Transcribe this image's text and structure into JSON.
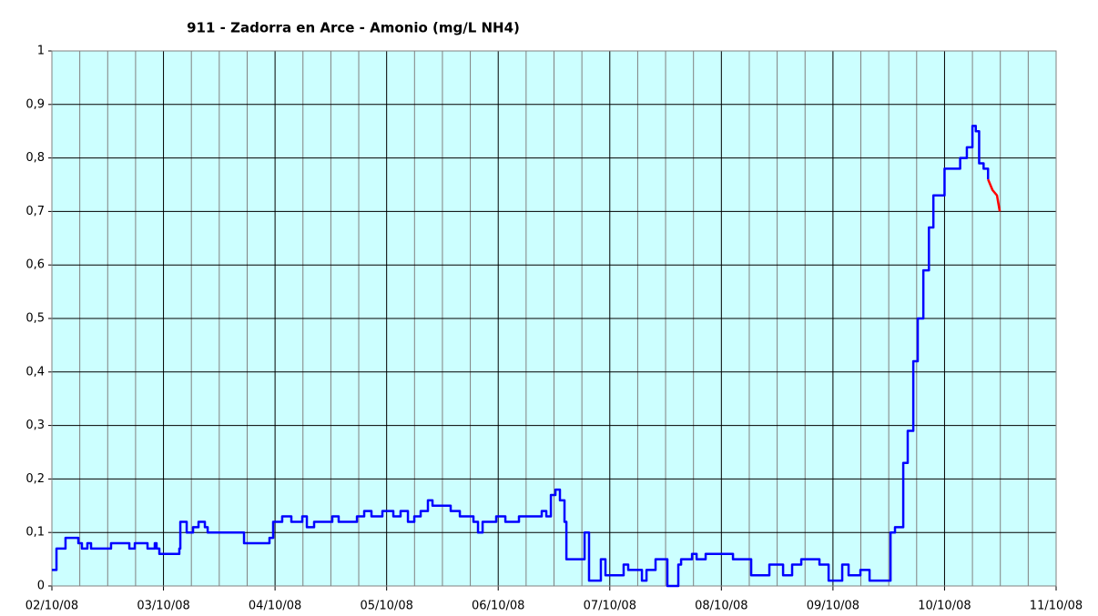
{
  "chart_data": {
    "type": "line",
    "title": "911 - Zadorra en Arce - Amonio (mg/L NH4)",
    "xlim": [
      0,
      9
    ],
    "xticks": [
      {
        "value": 0,
        "label": "02/10/08"
      },
      {
        "value": 1,
        "label": "03/10/08"
      },
      {
        "value": 2,
        "label": "04/10/08"
      },
      {
        "value": 3,
        "label": "05/10/08"
      },
      {
        "value": 4,
        "label": "06/10/08"
      },
      {
        "value": 5,
        "label": "07/10/08"
      },
      {
        "value": 6,
        "label": "08/10/08"
      },
      {
        "value": 7,
        "label": "09/10/08"
      },
      {
        "value": 8,
        "label": "10/10/08"
      },
      {
        "value": 9,
        "label": "11/10/08"
      }
    ],
    "xminorticks": [
      0.25,
      0.5,
      0.75,
      1.25,
      1.5,
      1.75,
      2.25,
      2.5,
      2.75,
      3.25,
      3.5,
      3.75,
      4.25,
      4.5,
      4.75,
      5.25,
      5.5,
      5.75,
      6.25,
      6.5,
      6.75,
      7.25,
      7.5,
      7.75,
      8.25,
      8.5,
      8.75
    ],
    "ylim": [
      0,
      1
    ],
    "yticks": [
      0,
      {
        "value": 0.1,
        "label": "0,1"
      },
      {
        "value": 0.2,
        "label": "0,2"
      },
      {
        "value": 0.3,
        "label": "0,3"
      },
      {
        "value": 0.4,
        "label": "0,4"
      },
      {
        "value": 0.5,
        "label": "0,5"
      },
      {
        "value": 0.6,
        "label": "0,6"
      },
      {
        "value": 0.7,
        "label": "0,7"
      },
      {
        "value": 0.8,
        "label": "0,8"
      },
      {
        "value": 0.9,
        "label": "0,9"
      },
      1
    ],
    "grid": true,
    "plot_background": "#ccffff",
    "series": [
      {
        "color": "#0000ff",
        "step": true,
        "x": [
          0,
          0.041,
          0.122,
          0.237,
          0.269,
          0.318,
          0.351,
          0.53,
          0.694,
          0.743,
          0.857,
          0.922,
          0.938,
          0.963,
          1.142,
          1.151,
          1.208,
          1.265,
          1.314,
          1.371,
          1.396,
          1.722,
          1.95,
          1.983,
          2.064,
          2.146,
          2.244,
          2.285,
          2.35,
          2.513,
          2.57,
          2.734,
          2.799,
          2.864,
          2.962,
          3.06,
          3.125,
          3.191,
          3.248,
          3.305,
          3.37,
          3.411,
          3.574,
          3.656,
          3.778,
          3.819,
          3.86,
          3.982,
          4.064,
          4.186,
          4.39,
          4.431,
          4.472,
          4.513,
          4.553,
          4.594,
          4.611,
          4.774,
          4.814,
          4.92,
          4.961,
          5.124,
          5.165,
          5.288,
          5.329,
          5.41,
          5.516,
          5.614,
          5.639,
          5.737,
          5.778,
          5.859,
          6.104,
          6.267,
          6.43,
          6.553,
          6.634,
          6.716,
          6.879,
          6.961,
          7.083,
          7.14,
          7.246,
          7.328,
          7.516,
          7.556,
          7.63,
          7.67,
          7.72,
          7.76,
          7.81,
          7.86,
          7.9,
          8.0,
          8.14,
          8.2,
          8.25,
          8.28,
          8.31,
          8.35,
          8.39
        ],
        "values": [
          0.03,
          0.07,
          0.09,
          0.08,
          0.07,
          0.08,
          0.07,
          0.08,
          0.07,
          0.08,
          0.07,
          0.08,
          0.07,
          0.06,
          0.07,
          0.12,
          0.1,
          0.11,
          0.12,
          0.11,
          0.1,
          0.08,
          0.09,
          0.12,
          0.13,
          0.12,
          0.13,
          0.11,
          0.12,
          0.13,
          0.12,
          0.13,
          0.14,
          0.13,
          0.14,
          0.13,
          0.14,
          0.12,
          0.13,
          0.14,
          0.16,
          0.15,
          0.14,
          0.13,
          0.12,
          0.1,
          0.12,
          0.13,
          0.12,
          0.13,
          0.14,
          0.13,
          0.17,
          0.18,
          0.16,
          0.12,
          0.05,
          0.1,
          0.01,
          0.05,
          0.02,
          0.04,
          0.03,
          0.01,
          0.03,
          0.05,
          0.0,
          0.04,
          0.05,
          0.06,
          0.05,
          0.06,
          0.05,
          0.02,
          0.04,
          0.02,
          0.04,
          0.05,
          0.04,
          0.01,
          0.04,
          0.02,
          0.03,
          0.01,
          0.1,
          0.11,
          0.23,
          0.29,
          0.42,
          0.5,
          0.59,
          0.67,
          0.73,
          0.78,
          0.8,
          0.82,
          0.86,
          0.85,
          0.79,
          0.78,
          0.76
        ]
      },
      {
        "color": "#ff0000",
        "step": false,
        "x": [
          8.39,
          8.43,
          8.47,
          8.495
        ],
        "values": [
          0.76,
          0.74,
          0.73,
          0.7
        ]
      }
    ]
  }
}
